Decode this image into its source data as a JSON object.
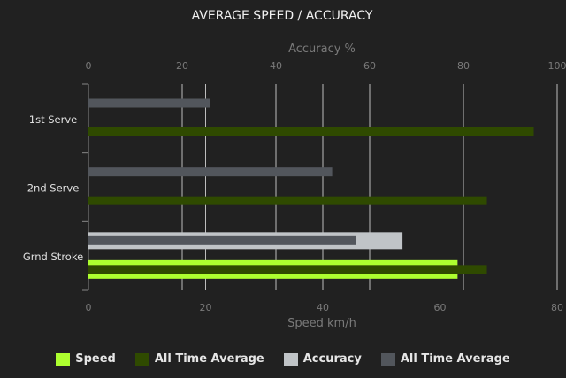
{
  "chart_data": {
    "type": "bar",
    "orientation": "horizontal",
    "title": "AVERAGE SPEED / ACCURACY",
    "categories": [
      "1st Serve",
      "2nd Serve",
      "Grnd Stroke"
    ],
    "top_axis": {
      "label": "Accuracy %",
      "range": [
        0,
        100
      ],
      "ticks": [
        0,
        20,
        40,
        60,
        80,
        100
      ]
    },
    "bottom_axis": {
      "label": "Speed km/h",
      "range": [
        0,
        80
      ],
      "ticks": [
        0,
        20,
        40,
        60,
        80
      ]
    },
    "grid": true,
    "legend_position": "bottom",
    "series": [
      {
        "name": "Speed",
        "axis": "bottom",
        "color": "#adff2f",
        "values": [
          null,
          null,
          63
        ]
      },
      {
        "name": "All Time Average",
        "axis": "bottom",
        "color": "#2f4a00",
        "values": [
          76,
          68,
          68
        ]
      },
      {
        "name": "Accuracy",
        "axis": "top",
        "color": "#c0c4c7",
        "values": [
          null,
          null,
          67
        ]
      },
      {
        "name": "All Time Average",
        "axis": "top",
        "color": "#52565c",
        "values": [
          26,
          52,
          57
        ]
      }
    ]
  }
}
